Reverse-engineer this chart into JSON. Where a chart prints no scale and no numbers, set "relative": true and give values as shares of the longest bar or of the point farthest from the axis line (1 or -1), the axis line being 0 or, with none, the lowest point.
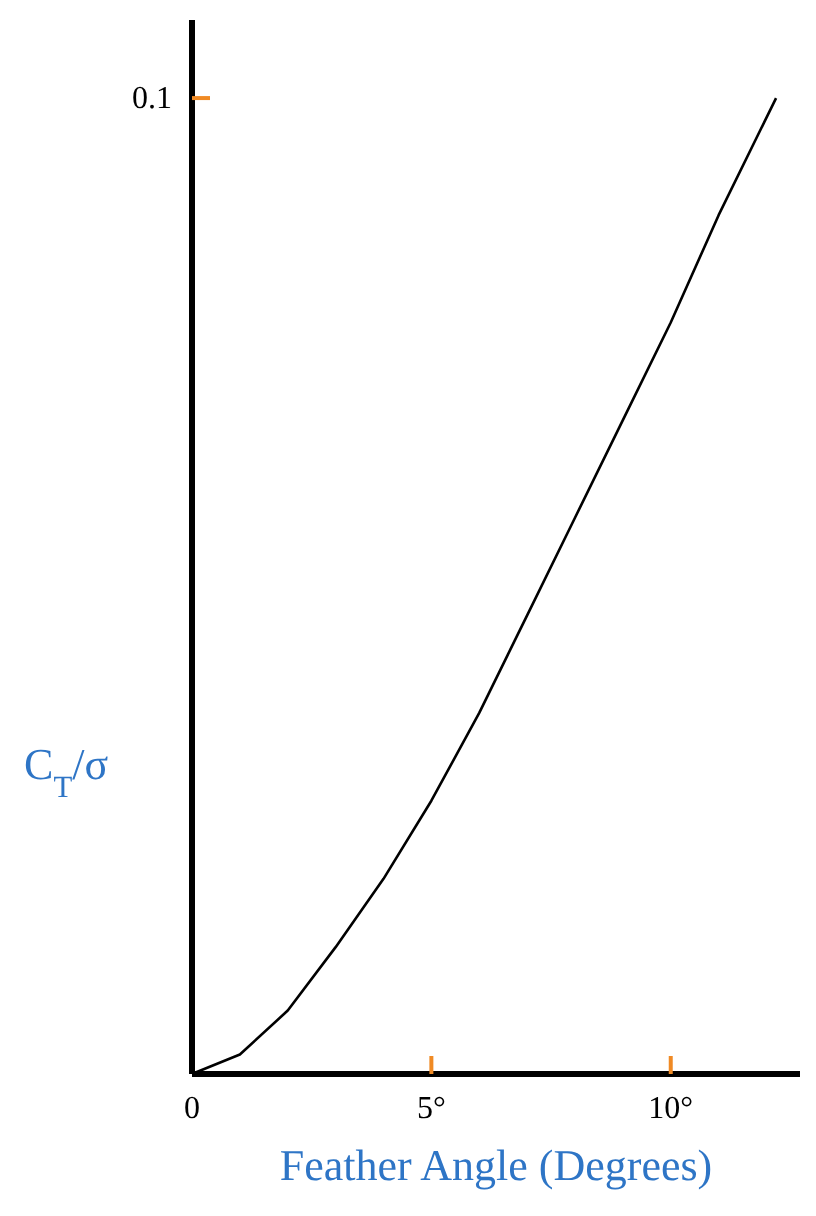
{
  "chart_data": {
    "type": "line",
    "relative": true,
    "xlabel": "Feather Angle (Degrees)",
    "ylabel": "C$_{T}$/σ",
    "annotations": [
      "0.1"
    ],
    "x": [
      0,
      1,
      2,
      3,
      4,
      5,
      6,
      7,
      8,
      9,
      10,
      11,
      12.2
    ],
    "series": [
      {
        "color": "#000000",
        "values": [
          0,
          0.02,
          0.065,
          0.13,
          0.2,
          0.28,
          0.37,
          0.47,
          0.57,
          0.67,
          0.77,
          0.88,
          1
        ]
      }
    ],
    "xlim": [
      0,
      12.7
    ],
    "xticks": [
      {
        "value": 0,
        "label": "0"
      },
      {
        "value": 5,
        "label": "5°"
      },
      {
        "value": 10,
        "label": "10°"
      }
    ],
    "grid": false,
    "legend": false,
    "marker": "none",
    "line_style": "solid"
  }
}
